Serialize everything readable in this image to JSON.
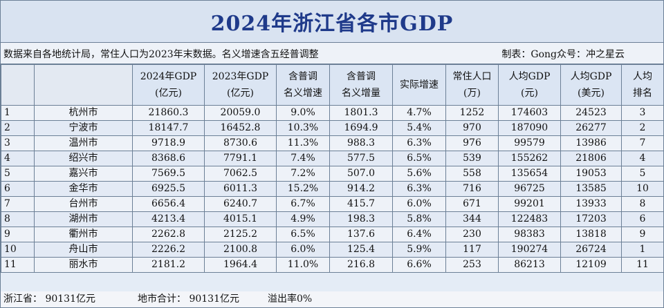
{
  "title": "2024年浙江省各市GDP",
  "note": "数据来自各地统计局，常住人口为2023年末数据。名义增速含五经普调整",
  "credit": "制表：Gong众号：冲之星云",
  "headers": [
    {
      "line1": "",
      "line2": ""
    },
    {
      "line1": "",
      "line2": ""
    },
    {
      "line1": "2024年GDP",
      "line2": "(亿元)"
    },
    {
      "line1": "2023年GDP",
      "line2": "(亿元)"
    },
    {
      "line1": "含普调",
      "line2": "名义增速"
    },
    {
      "line1": "含普调",
      "line2": "名义增量"
    },
    {
      "line1": "实际增速",
      "line2": ""
    },
    {
      "line1": "常住人口",
      "line2": "(万)"
    },
    {
      "line1": "人均GDP",
      "line2": "(元)"
    },
    {
      "line1": "人均GDP",
      "line2": "(美元)"
    },
    {
      "line1": "人均",
      "line2": "排名"
    }
  ],
  "rows": [
    [
      "1",
      "杭州市",
      "21860.3",
      "20059.0",
      "9.0%",
      "1801.3",
      "4.7%",
      "1252",
      "174603",
      "24523",
      "3"
    ],
    [
      "2",
      "宁波市",
      "18147.7",
      "16452.8",
      "10.3%",
      "1694.9",
      "5.4%",
      "970",
      "187090",
      "26277",
      "2"
    ],
    [
      "3",
      "温州市",
      "9718.9",
      "8730.6",
      "11.3%",
      "988.3",
      "6.3%",
      "976",
      "99579",
      "13986",
      "7"
    ],
    [
      "4",
      "绍兴市",
      "8368.6",
      "7791.1",
      "7.4%",
      "577.5",
      "6.5%",
      "539",
      "155262",
      "21806",
      "4"
    ],
    [
      "5",
      "嘉兴市",
      "7569.5",
      "7062.5",
      "7.2%",
      "507.0",
      "5.6%",
      "558",
      "135654",
      "19053",
      "5"
    ],
    [
      "6",
      "金华市",
      "6925.5",
      "6011.3",
      "15.2%",
      "914.2",
      "6.3%",
      "716",
      "96725",
      "13585",
      "10"
    ],
    [
      "7",
      "台州市",
      "6656.4",
      "6240.7",
      "6.7%",
      "415.7",
      "6.0%",
      "671",
      "99201",
      "13933",
      "8"
    ],
    [
      "8",
      "湖州市",
      "4213.4",
      "4015.1",
      "4.9%",
      "198.3",
      "5.8%",
      "344",
      "122483",
      "17203",
      "6"
    ],
    [
      "9",
      "衢州市",
      "2262.8",
      "2125.2",
      "6.5%",
      "137.6",
      "6.4%",
      "230",
      "98383",
      "13818",
      "9"
    ],
    [
      "10",
      "舟山市",
      "2226.2",
      "2100.8",
      "6.0%",
      "125.4",
      "5.9%",
      "117",
      "190274",
      "26724",
      "1"
    ],
    [
      "11",
      "丽水市",
      "2181.2",
      "1964.4",
      "11.0%",
      "216.8",
      "6.6%",
      "253",
      "86213",
      "12109",
      "11"
    ]
  ],
  "footer": {
    "province": "浙江省： 90131亿元",
    "cities_total": "地市合计： 90131亿元",
    "overflow": "溢出率0%"
  }
}
